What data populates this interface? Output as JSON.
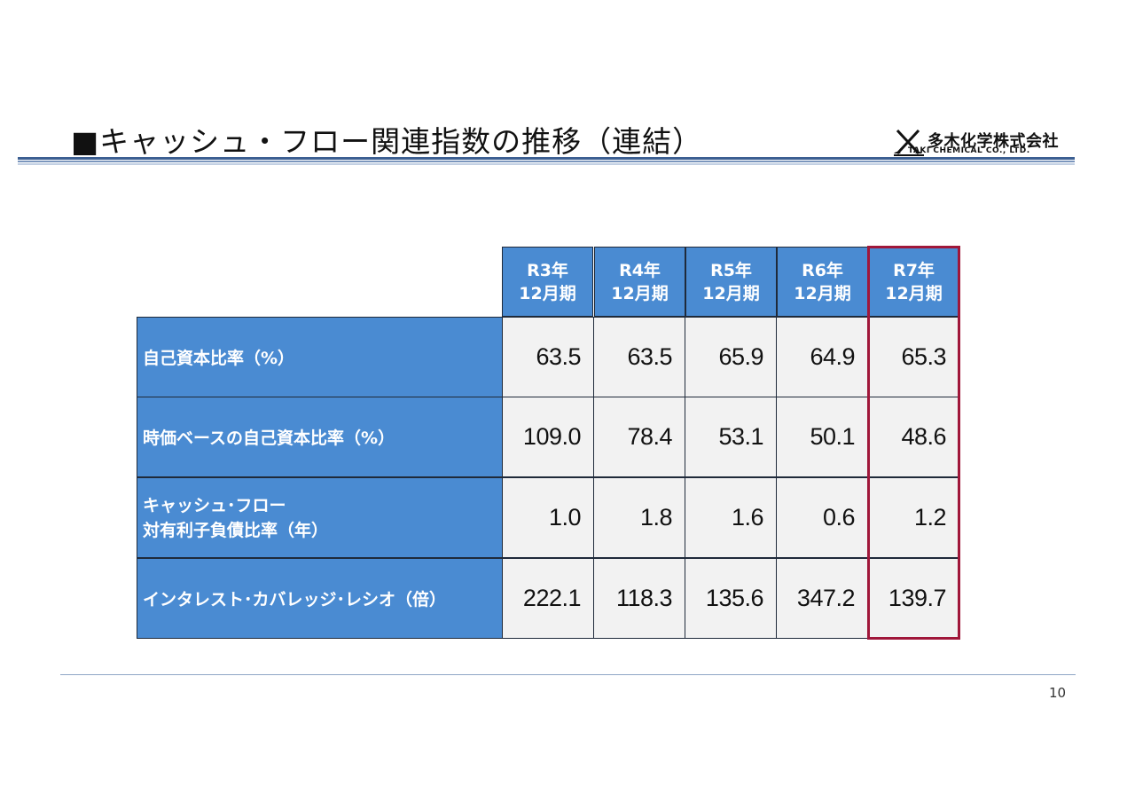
{
  "title": "■キャッシュ・フロー関連指数の推移（連結）",
  "company": {
    "name_ja": "多木化学株式会社",
    "name_en": "TAKI CHEMICAL CO., LTD.",
    "logo_icon": "crossed-tools-logo-icon"
  },
  "table": {
    "columns": [
      {
        "year": "R3年",
        "period": "12月期"
      },
      {
        "year": "R4年",
        "period": "12月期"
      },
      {
        "year": "R5年",
        "period": "12月期"
      },
      {
        "year": "R6年",
        "period": "12月期"
      },
      {
        "year": "R7年",
        "period": "12月期"
      }
    ],
    "rows": [
      {
        "label": [
          "自己資本比率（%）"
        ],
        "values": [
          "63.5",
          "63.5",
          "65.9",
          "64.9",
          "65.3"
        ]
      },
      {
        "label": [
          "時価ベースの自己資本比率（%）"
        ],
        "values": [
          "109.0",
          "78.4",
          "53.1",
          "50.1",
          "48.6"
        ]
      },
      {
        "label": [
          "キャッシュ･フロー",
          "対有利子負債比率（年）"
        ],
        "values": [
          "1.0",
          "1.8",
          "1.6",
          "0.6",
          "1.2"
        ]
      },
      {
        "label": [
          "インタレスト･カバレッジ･レシオ（倍）"
        ],
        "values": [
          "222.1",
          "118.3",
          "135.6",
          "347.2",
          "139.7"
        ]
      }
    ],
    "header_color": "#4a8bd2",
    "cell_color": "#f2f2f2",
    "highlight_color": "#a0173a"
  },
  "page_number": "10"
}
